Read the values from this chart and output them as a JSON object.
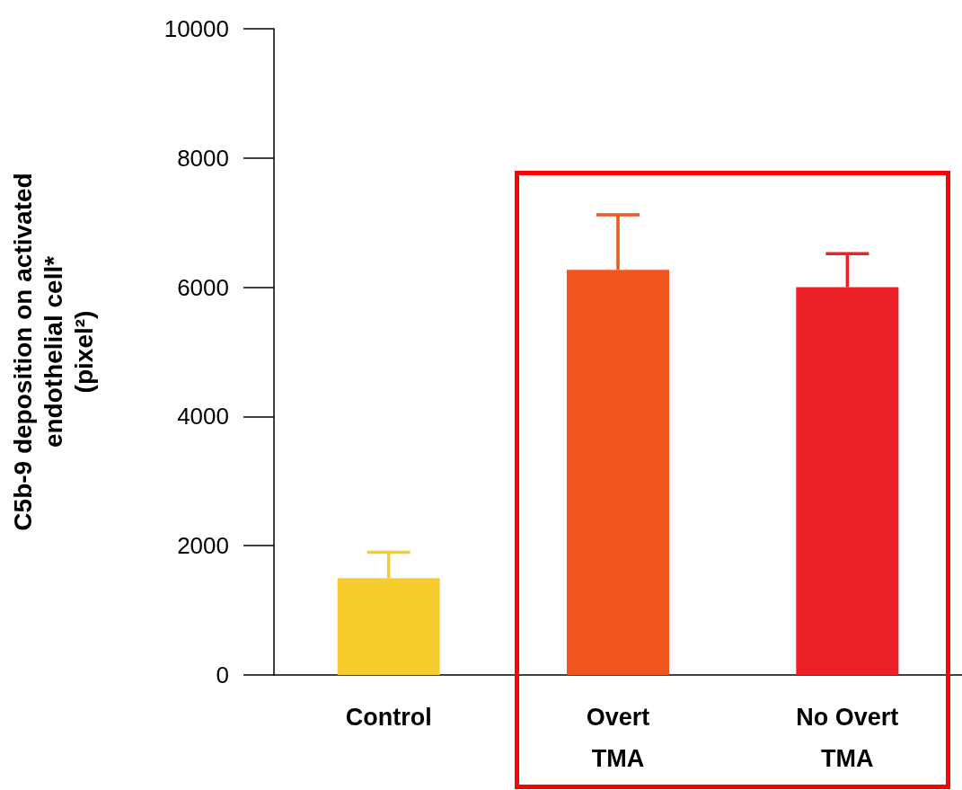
{
  "chart_data": {
    "type": "bar",
    "ylabel": "C5b-9 deposition on activated\nendothelial cell*\n(pixel²)",
    "categories": [
      "Control",
      "Overt\nTMA",
      "No Overt\nTMA"
    ],
    "values": [
      1500,
      6270,
      6000
    ],
    "colors": [
      "#f7cd2e",
      "#f0561e",
      "#ed2027"
    ],
    "errors": [
      [
        1500,
        1900
      ],
      [
        6270,
        7120
      ],
      [
        6000,
        6520
      ]
    ],
    "ylim": [
      0,
      10000
    ],
    "yticks": [
      0,
      2000,
      4000,
      6000,
      8000,
      10000
    ],
    "grid": false
  }
}
